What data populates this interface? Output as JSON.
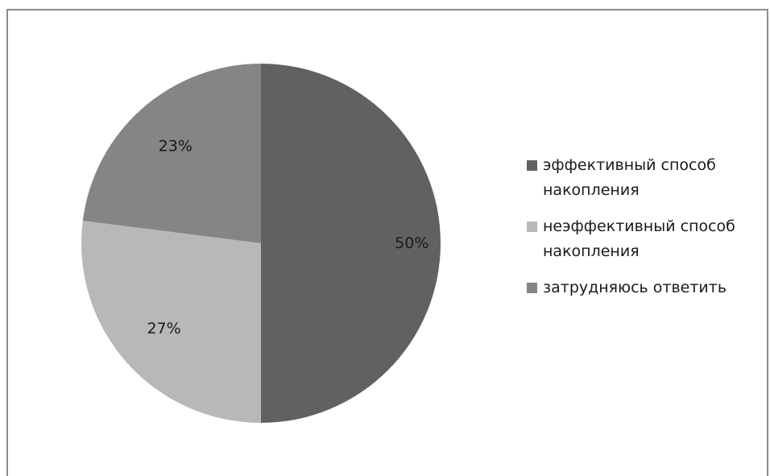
{
  "chart_data": {
    "type": "pie",
    "title": "",
    "slices": [
      {
        "label": "эффективный способ накопления",
        "value": 50,
        "value_label": "50%",
        "color": "#616161"
      },
      {
        "label": "неэффективный способ накопления",
        "value": 27,
        "value_label": "27%",
        "color": "#b8b8b8"
      },
      {
        "label": "затрудняюсь ответить",
        "value": 23,
        "value_label": "23%",
        "color": "#858585"
      }
    ],
    "start_angle": "12 o'clock",
    "direction": "clockwise",
    "legend_position": "right"
  }
}
